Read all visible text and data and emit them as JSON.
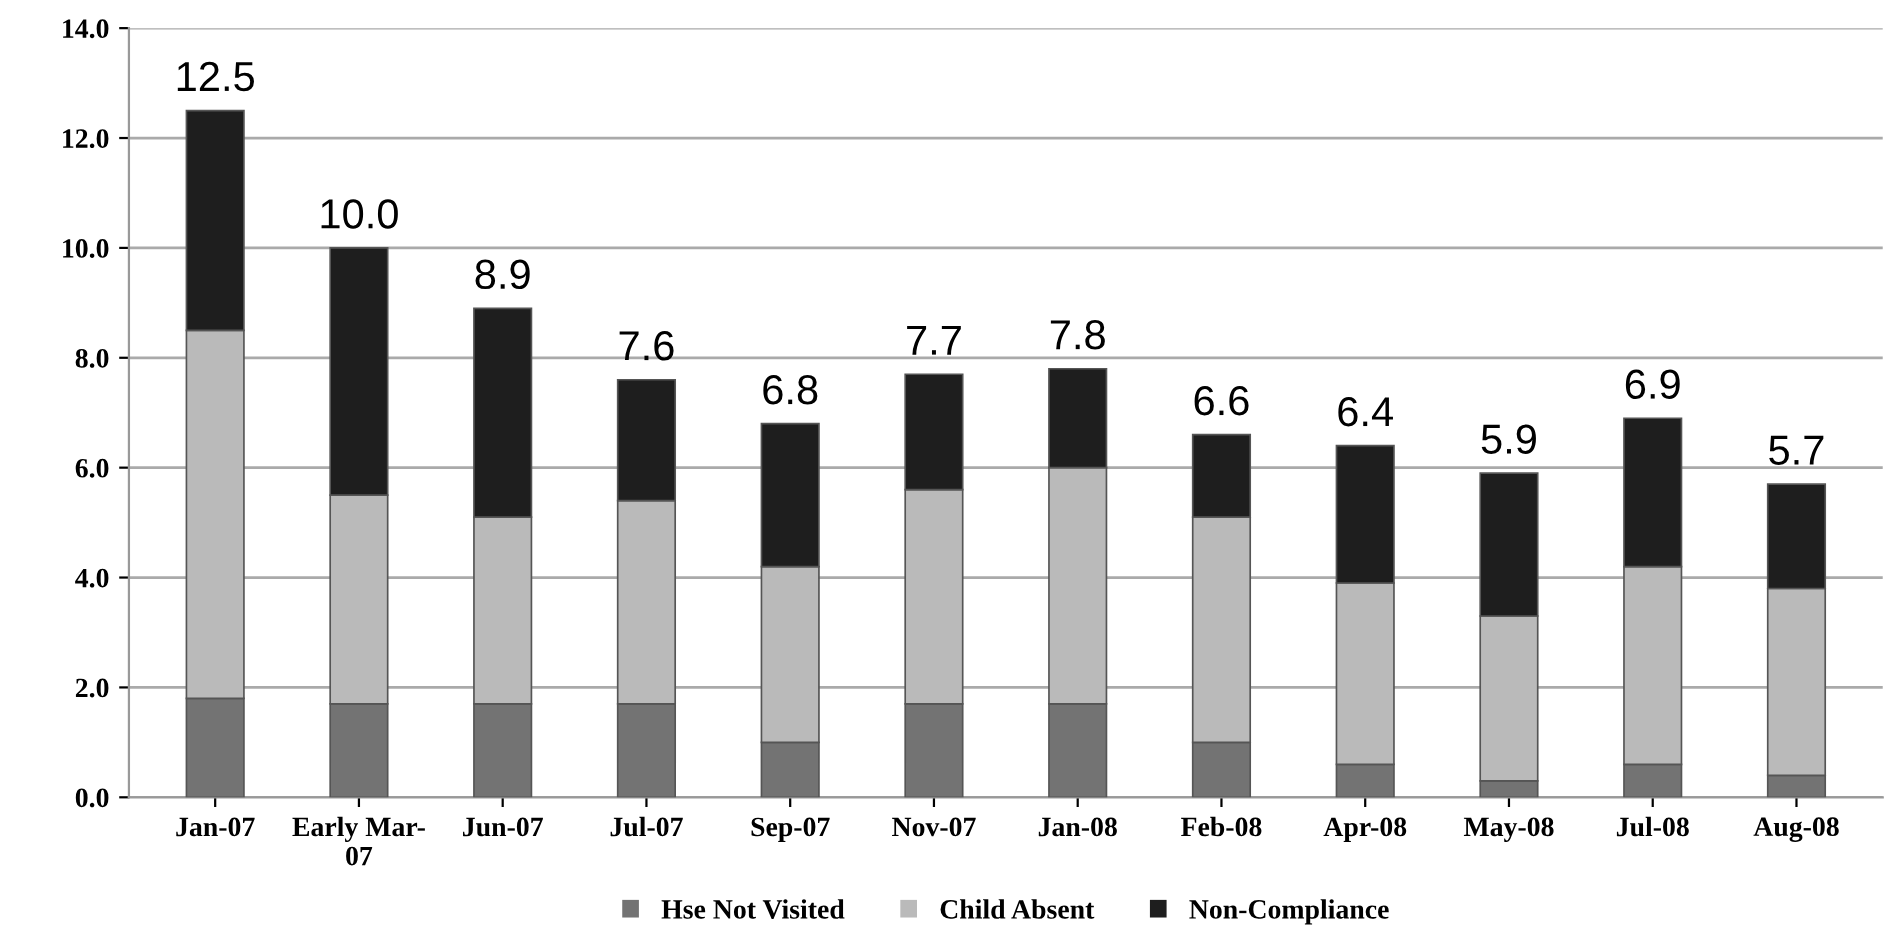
{
  "chart_data": {
    "type": "bar",
    "stacked": true,
    "categories": [
      "Jan-07",
      "Early Mar-\n07",
      "Jun-07",
      "Jul-07",
      "Sep-07",
      "Nov-07",
      "Jan-08",
      "Feb-08",
      "Apr-08",
      "May-08",
      "Jul-08",
      "Aug-08"
    ],
    "series": [
      {
        "name": "Hse Not Visited",
        "color": "#737373",
        "values": [
          1.8,
          1.7,
          1.7,
          1.7,
          1.0,
          1.7,
          1.7,
          1.0,
          0.6,
          0.3,
          0.6,
          0.4
        ]
      },
      {
        "name": "Child Absent",
        "color": "#bababa",
        "values": [
          6.7,
          3.8,
          3.4,
          3.7,
          3.2,
          3.9,
          4.3,
          4.1,
          3.3,
          3.0,
          3.6,
          3.4
        ]
      },
      {
        "name": "Non-Compliance",
        "color": "#1e1e1e",
        "values": [
          4.0,
          4.5,
          3.8,
          2.2,
          2.6,
          2.1,
          1.8,
          1.5,
          2.5,
          2.6,
          2.7,
          1.9
        ]
      }
    ],
    "totals": [
      "12.5",
      "10.0",
      "8.9",
      "7.6",
      "6.8",
      "7.7",
      "7.8",
      "6.6",
      "6.4",
      "5.9",
      "6.9",
      "5.7"
    ],
    "ylim": [
      0,
      14
    ],
    "yticks": [
      {
        "value": 0,
        "label": "0.0"
      },
      {
        "value": 2,
        "label": "2.0"
      },
      {
        "value": 4,
        "label": "4.0"
      },
      {
        "value": 6,
        "label": "6.0"
      },
      {
        "value": 8,
        "label": "8.0"
      },
      {
        "value": 10,
        "label": "10.0"
      },
      {
        "value": 12,
        "label": "12.0"
      },
      {
        "value": 14,
        "label": "14.0"
      }
    ],
    "grid": "y",
    "legend": "bottom"
  }
}
